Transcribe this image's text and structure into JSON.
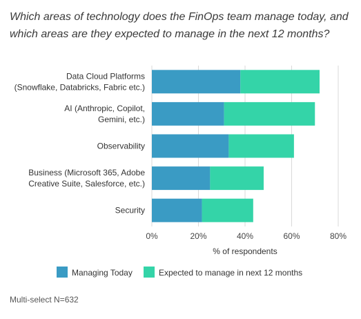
{
  "chart_data": {
    "type": "bar",
    "orientation": "horizontal",
    "stacked": true,
    "title": "Which areas of technology does the FinOps team manage today, and which areas are they expected to manage in the next 12 months?",
    "categories": [
      [
        "Data Cloud Platforms",
        "(Snowflake, Databricks, Fabric etc.)"
      ],
      [
        "AI (Anthropic, Copilot,",
        "Gemini, etc.)"
      ],
      [
        "Observability"
      ],
      [
        "Business (Microsoft 365, Adobe",
        "Creative Suite, Salesforce, etc.)"
      ],
      [
        "Security"
      ]
    ],
    "series": [
      {
        "name": "Managing Today",
        "color": "#3a9bc4",
        "values": [
          38,
          31,
          33,
          25,
          21.5
        ]
      },
      {
        "name": "Expected to manage in next 12 months",
        "color": "#34d4a8",
        "values": [
          34,
          39,
          28,
          23,
          22
        ]
      }
    ],
    "xlim": [
      0,
      80
    ],
    "xticks": [
      0,
      20,
      40,
      60,
      80
    ],
    "tick_format": "{v}%",
    "xlabel": "% of respondents",
    "grid": true,
    "legend_position": "bottom"
  },
  "note": "Multi-select N=632"
}
